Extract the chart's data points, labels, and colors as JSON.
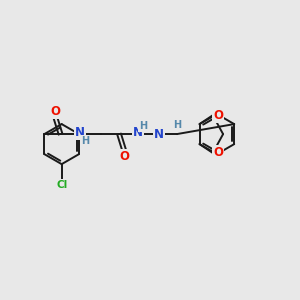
{
  "bg_color": "#e8e8e8",
  "bond_color": "#1a1a1a",
  "bond_width": 1.4,
  "dbo": 0.07,
  "atom_colors": {
    "O": "#ee1100",
    "N": "#2244cc",
    "Cl": "#22aa22",
    "H": "#5588aa",
    "C": "#1a1a1a"
  },
  "fs_large": 8.5,
  "fs_small": 7.0
}
